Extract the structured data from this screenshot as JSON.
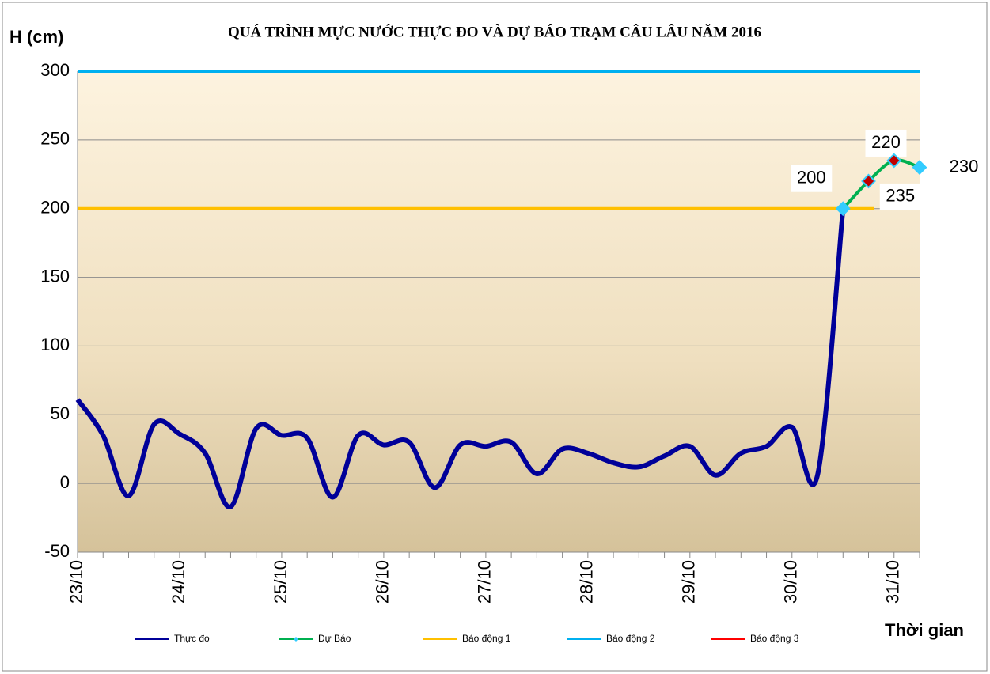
{
  "chart_data": {
    "type": "line",
    "title": "QUÁ TRÌNH MỰC NƯỚC THỰC ĐO VÀ DỰ BÁO TRẠM CÂU LÂU NĂM 2016",
    "y_label": "H (cm)",
    "x_label": "Thời gian",
    "categories": [
      "23/10",
      null,
      null,
      null,
      "24/10",
      null,
      null,
      null,
      "25/10",
      null,
      null,
      null,
      "26/10",
      null,
      null,
      null,
      "27/10",
      null,
      null,
      null,
      "28/10",
      null,
      null,
      null,
      "29/10",
      null,
      null,
      null,
      "30/10",
      null,
      null,
      null,
      "31/10",
      null
    ],
    "series": [
      {
        "name": "Thực đo",
        "color": "#000099",
        "values": [
          61,
          35,
          -9,
          43,
          36,
          22,
          -17,
          40,
          35,
          33,
          -10,
          35,
          28,
          30,
          -3,
          28,
          27,
          30,
          7,
          25,
          22,
          15,
          12,
          20,
          27,
          6,
          22,
          27,
          41,
          6,
          200,
          null,
          null,
          null
        ]
      },
      {
        "name": "Dự Báo",
        "color": "#00b050",
        "marker_color": "#c00000",
        "marker_edge": "#33ccff",
        "values": [
          null,
          null,
          null,
          null,
          null,
          null,
          null,
          null,
          null,
          null,
          null,
          null,
          null,
          null,
          null,
          null,
          null,
          null,
          null,
          null,
          null,
          null,
          null,
          null,
          null,
          null,
          null,
          null,
          null,
          null,
          200,
          220,
          235,
          230
        ]
      }
    ],
    "thresholds": [
      {
        "name": "Báo động 1",
        "color": "#ffc000",
        "value": 200
      },
      {
        "name": "Báo động 2",
        "color": "#00b0f0",
        "value": 300
      },
      {
        "name": "Báo động 3",
        "color": "#ff0000",
        "value": null
      }
    ],
    "ylim": [
      -50,
      300
    ],
    "yticks": [
      -50,
      0,
      50,
      100,
      150,
      200,
      250,
      300
    ],
    "grid": true,
    "legend": "bottom"
  }
}
